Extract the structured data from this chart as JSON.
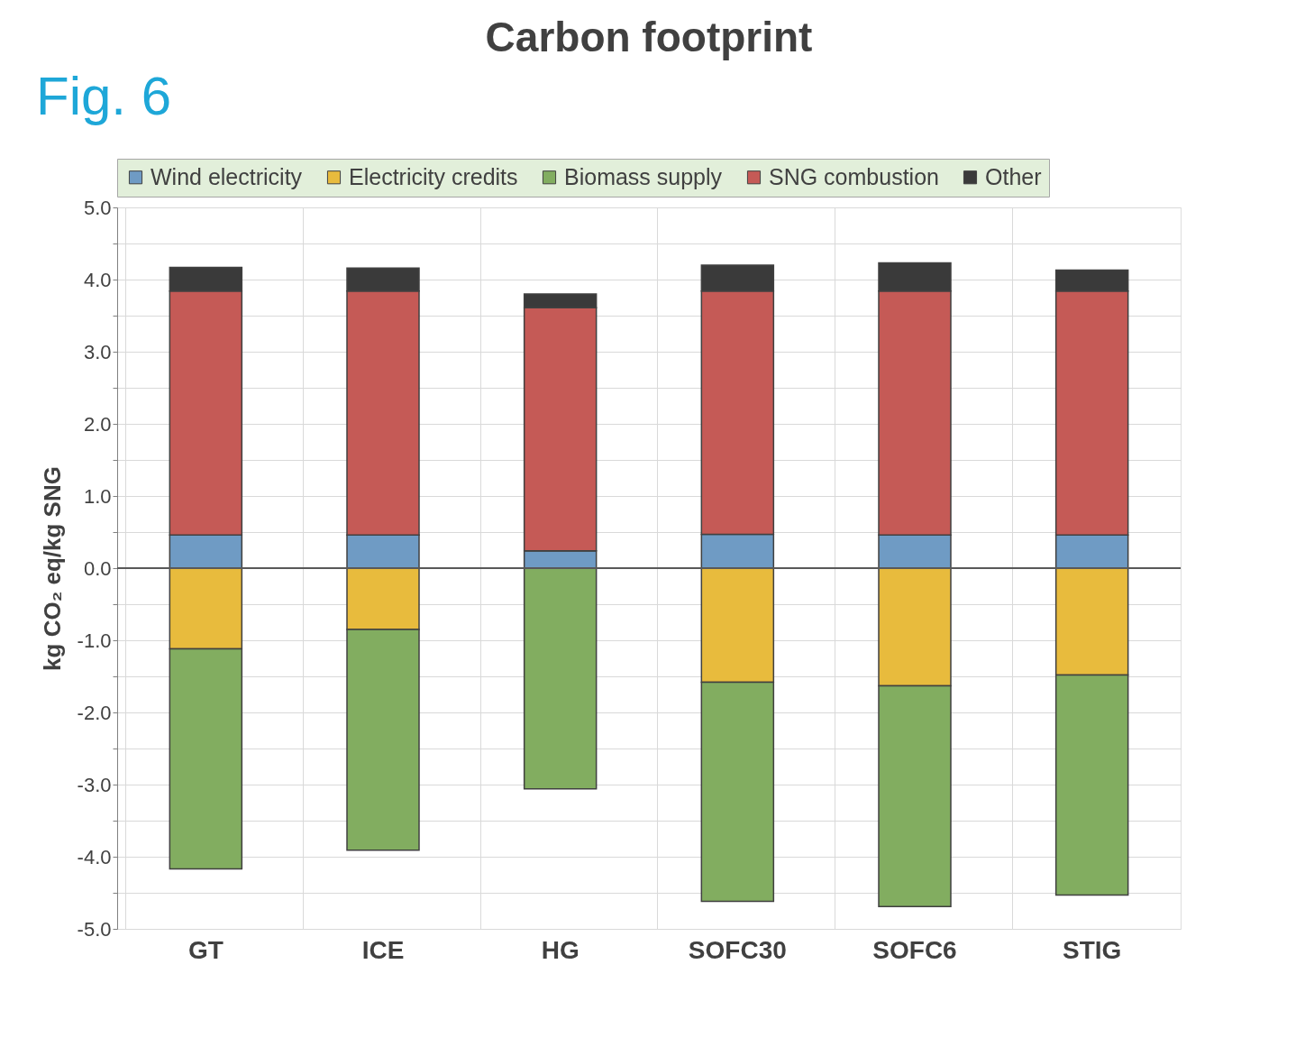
{
  "chart_data": {
    "type": "bar",
    "title": "Carbon footprint",
    "ylabel": "kg CO₂ eq/kg SNG",
    "annotations": [
      "Fig. 6"
    ],
    "categories": [
      "GT",
      "ICE",
      "HG",
      "SOFC30",
      "SOFC6",
      "STIG"
    ],
    "stacked": true,
    "series": [
      {
        "name": "Wind electricity",
        "color": "#6f9bc4",
        "values": [
          0.46,
          0.46,
          0.24,
          0.47,
          0.46,
          0.46
        ]
      },
      {
        "name": "Electricity credits",
        "color": "#e8bb3d",
        "values": [
          -1.12,
          -0.85,
          0,
          -1.58,
          -1.63,
          -1.48
        ]
      },
      {
        "name": "Biomass supply",
        "color": "#82ad60",
        "values": [
          -3.05,
          -3.06,
          -3.06,
          -3.04,
          -3.06,
          -3.05
        ]
      },
      {
        "name": "SNG combustion",
        "color": "#c55a56",
        "values": [
          3.38,
          3.38,
          3.37,
          3.37,
          3.38,
          3.38
        ]
      },
      {
        "name": "Other",
        "color": "#3a3a3a",
        "values": [
          0.33,
          0.32,
          0.19,
          0.36,
          0.39,
          0.29
        ]
      }
    ],
    "ylim": [
      -5,
      5
    ],
    "yticks": [
      {
        "value": -5,
        "label": "-5.0"
      },
      {
        "value": -4.5,
        "label": null
      },
      {
        "value": -4,
        "label": "-4.0"
      },
      {
        "value": -3.5,
        "label": null
      },
      {
        "value": -3,
        "label": "-3.0"
      },
      {
        "value": -2.5,
        "label": null
      },
      {
        "value": -2,
        "label": "-2.0"
      },
      {
        "value": -1.5,
        "label": null
      },
      {
        "value": -1,
        "label": "-1.0"
      },
      {
        "value": -0.5,
        "label": null
      },
      {
        "value": 0,
        "label": "0.0"
      },
      {
        "value": 0.5,
        "label": null
      },
      {
        "value": 1,
        "label": "1.0"
      },
      {
        "value": 1.5,
        "label": null
      },
      {
        "value": 2,
        "label": "2.0"
      },
      {
        "value": 2.5,
        "label": null
      },
      {
        "value": 3,
        "label": "3.0"
      },
      {
        "value": 3.5,
        "label": null
      },
      {
        "value": 4,
        "label": "4.0"
      },
      {
        "value": 4.5,
        "label": null
      },
      {
        "value": 5,
        "label": "5.0"
      }
    ],
    "ref_lines": [
      {
        "axis": "y",
        "value": 0,
        "label": null,
        "color": "#595959"
      }
    ],
    "grid": true,
    "legend": "top"
  }
}
